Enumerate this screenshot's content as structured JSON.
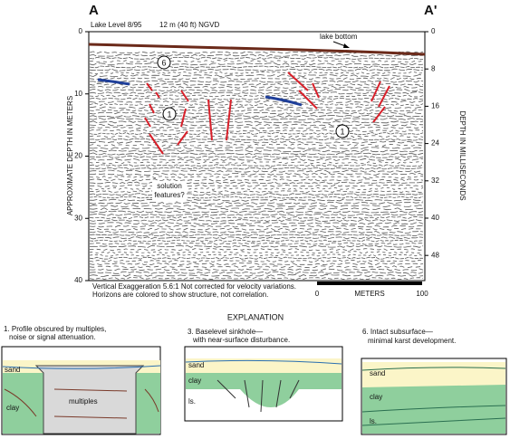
{
  "figure": {
    "corner_left": "A",
    "corner_right": "A'",
    "lake_level": "Lake Level 8/95",
    "datum": "12 m (40 ft) NGVD",
    "lake_bottom": "lake bottom",
    "circle_labels": [
      "6",
      "1",
      "1"
    ],
    "solution": [
      "solution",
      "features?"
    ],
    "left_axis": {
      "title": "APPROXIMATE DEPTH IN METERS",
      "lim": [
        0,
        40
      ],
      "ticks": [
        0,
        10,
        20,
        30,
        40
      ]
    },
    "right_axis": {
      "title": "DEPTH IN MILLISECONDS",
      "lim": [
        0,
        53.4
      ],
      "ticks": [
        0,
        8,
        16,
        24,
        32,
        40,
        48
      ]
    },
    "notes": [
      "Vertical Exaggeration 5.6:1    Not corrected for velocity variations.",
      "Horizons are colored to show structure, not correlation."
    ],
    "scale_bar": {
      "label": "METERS",
      "ticks": [
        0,
        100
      ]
    }
  },
  "explanation": {
    "title": "EXPLANATION",
    "panels": [
      {
        "caption": [
          "1. Profile obscured by multiples,",
          "noise or signal attenuation."
        ],
        "labels": [
          "sand",
          "clay",
          "multiples"
        ]
      },
      {
        "caption": [
          "3. Baselevel sinkhole—",
          "with near-surface disturbance."
        ],
        "labels": [
          "sand",
          "clay",
          "ls."
        ]
      },
      {
        "caption": [
          "6. Intact subsurface—",
          "minimal karst development."
        ],
        "labels": [
          "sand",
          "clay",
          "ls."
        ]
      }
    ]
  }
}
